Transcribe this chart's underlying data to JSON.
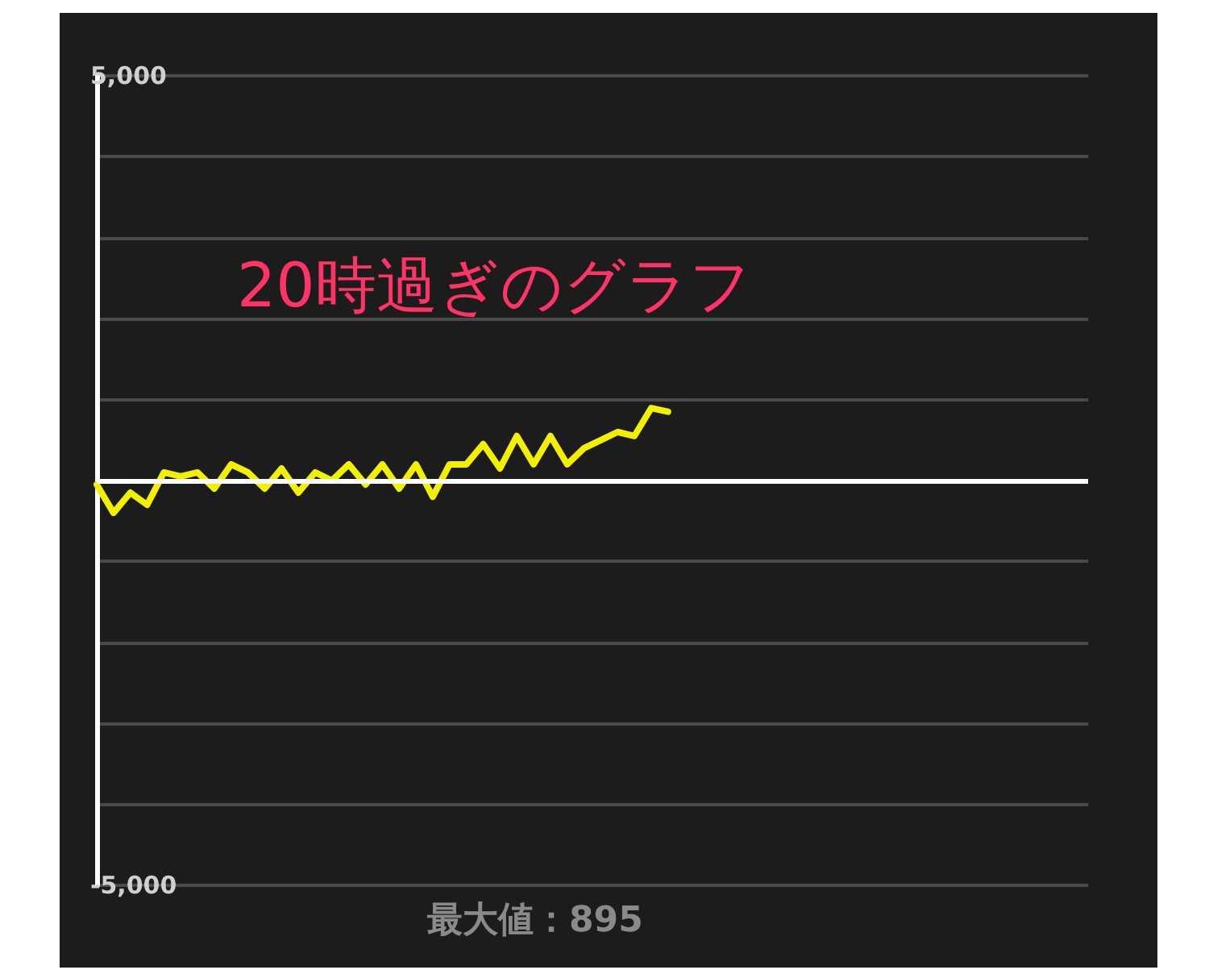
{
  "chart_data": {
    "type": "line",
    "title": "20時過ぎのグラフ",
    "annotations": [
      "最大値：895"
    ],
    "categories": [
      null,
      null,
      null,
      null,
      null,
      null,
      null,
      null,
      null,
      null,
      null,
      null,
      null,
      null,
      null,
      null,
      null,
      null,
      null,
      null,
      null,
      null,
      null,
      null,
      null,
      null,
      null,
      null,
      null,
      null,
      null,
      null,
      null,
      null,
      null,
      null,
      null,
      null,
      null,
      null,
      null,
      null,
      null,
      null,
      null,
      null,
      null,
      null,
      null,
      null,
      null,
      null,
      null,
      null,
      null,
      null,
      null,
      null,
      null,
      null
    ],
    "series": [
      {
        "color": "#f0f000",
        "values": [
          -50,
          -400,
          -150,
          -300,
          100,
          50,
          100,
          -100,
          200,
          100,
          -100,
          150,
          -150,
          100,
          0,
          200,
          -50,
          200,
          -100,
          200,
          -200,
          200,
          200,
          450,
          150,
          550,
          200,
          550,
          200,
          400,
          500,
          600,
          550,
          895,
          850,
          null,
          null,
          null,
          null,
          null,
          null,
          null,
          null,
          null,
          null,
          null,
          null,
          null,
          null,
          null,
          null,
          null,
          null,
          null,
          null,
          null,
          null,
          null,
          null,
          null
        ]
      }
    ],
    "ylim": [
      -5000,
      5000
    ],
    "yticks": [
      {
        "value": -5000,
        "label": "-5,000"
      },
      {
        "value": -4000,
        "label": null
      },
      {
        "value": -3000,
        "label": null
      },
      {
        "value": -2000,
        "label": null
      },
      {
        "value": -1000,
        "label": null
      },
      {
        "value": 0,
        "label": null
      },
      {
        "value": 1000,
        "label": null
      },
      {
        "value": 2000,
        "label": null
      },
      {
        "value": 3000,
        "label": null
      },
      {
        "value": 4000,
        "label": null
      },
      {
        "value": 5000,
        "label": "5,000"
      }
    ],
    "grid": "y",
    "marker": "none",
    "line_style": "solid",
    "tick_labels": "y",
    "ref_lines": [
      {
        "axis": "y",
        "value": 0,
        "color": "#ffffff"
      }
    ]
  }
}
